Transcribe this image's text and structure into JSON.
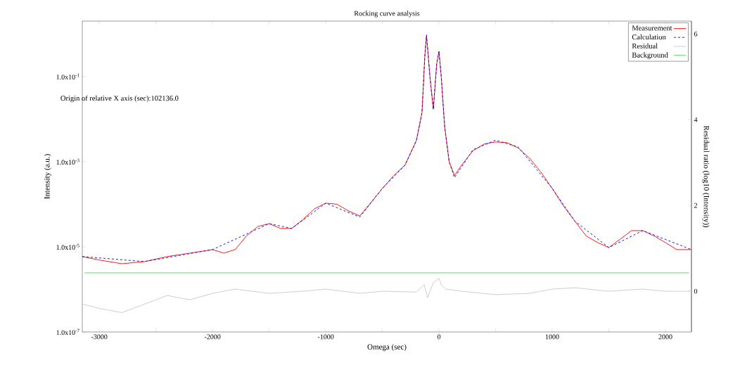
{
  "chart_data": {
    "type": "line",
    "title": "Rocking curve analysis",
    "xlabel": "Omega (sec)",
    "ylabel": "Intensity (a.u.)",
    "y2label": "Residual ratio (log10 (Intensity))",
    "annotations": [
      "Origin of relative X axis (sec):102136.0"
    ],
    "log": "y",
    "legend": "top right",
    "xlim": [
      -3150,
      2230
    ],
    "xticks": [
      -3000,
      {
        "value": -2500,
        "label": null
      },
      -2000,
      {
        "value": -1500,
        "label": null
      },
      -1000,
      {
        "value": -500,
        "label": null
      },
      0,
      {
        "value": 500,
        "label": null
      },
      1000,
      {
        "value": 1500,
        "label": null
      },
      2000
    ],
    "ylim": [
      1e-07,
      2
    ],
    "yticks": [
      {
        "value": 1e-07,
        "label": "1.0x10$^{-7}$"
      },
      {
        "value": 1e-05,
        "label": "1.0x10$^{-5}$"
      },
      {
        "value": 0.001,
        "label": "1.0x10$^{-3}$"
      },
      {
        "value": 0.1,
        "label": "1.0x10$^{-1}$"
      }
    ],
    "y2lim": [
      -0.95,
      6.3
    ],
    "y2ticks": [
      0,
      2,
      4,
      6
    ],
    "series": [
      {
        "name": "Measurement",
        "color": "#ff0000",
        "line_style": "solid",
        "x": [
          -3150,
          -3000,
          -2800,
          -2600,
          -2400,
          -2200,
          -2000,
          -1900,
          -1800,
          -1700,
          -1600,
          -1500,
          -1400,
          -1300,
          -1200,
          -1100,
          -1000,
          -900,
          -800,
          -700,
          -600,
          -500,
          -400,
          -300,
          -200,
          -150,
          -125,
          -110,
          -80,
          -50,
          -20,
          0,
          20,
          50,
          90,
          137,
          200,
          300,
          400,
          500,
          600,
          700,
          800,
          900,
          1000,
          1100,
          1200,
          1300,
          1400,
          1500,
          1600,
          1700,
          1800,
          1900,
          2000,
          2100,
          2230
        ],
        "values": [
          5.9e-06,
          4.9e-06,
          4e-06,
          4.5e-06,
          5.9e-06,
          7.1e-06,
          8.6e-06,
          7.1e-06,
          8.6e-06,
          1.8e-05,
          3e-05,
          3.5e-05,
          2.7e-05,
          2.7e-05,
          4.4e-05,
          7.8e-05,
          0.000106,
          0.0001,
          7e-05,
          5.3e-05,
          0.00011,
          0.000235,
          0.00047,
          0.00083,
          0.0031,
          0.014,
          0.3,
          0.94,
          0.1,
          0.017,
          0.2,
          0.39,
          0.1,
          0.0067,
          0.001,
          0.00047,
          0.00083,
          0.0018,
          0.0026,
          0.0029,
          0.0028,
          0.0021,
          0.0012,
          0.00057,
          0.000235,
          9.1e-05,
          4e-05,
          1.8e-05,
          1.26e-05,
          9.6e-06,
          1.5e-05,
          2.4e-05,
          2.4e-05,
          1.8e-05,
          1.26e-05,
          8.6e-06,
          8.6e-06
        ]
      },
      {
        "name": "Calculation",
        "color": "#0000ff",
        "line_style": "dashed",
        "x": [
          -3150,
          -2600,
          -2000,
          -1500,
          -1300,
          -1000,
          -700,
          -500,
          -300,
          -200,
          -150,
          -125,
          -110,
          -80,
          -50,
          -20,
          0,
          20,
          50,
          90,
          137,
          300,
          500,
          700,
          1000,
          1200,
          1500,
          1800,
          2230
        ],
        "values": [
          5.9e-06,
          4.5e-06,
          8.6e-06,
          3.5e-05,
          2.7e-05,
          0.000106,
          5e-05,
          0.000235,
          0.00083,
          0.0031,
          0.014,
          0.3,
          0.94,
          0.1,
          0.017,
          0.2,
          0.39,
          0.1,
          0.0067,
          0.001,
          0.00042,
          0.0019,
          0.0032,
          0.0022,
          0.000235,
          4e-05,
          9.6e-06,
          2.4e-05,
          8.6e-06
        ]
      },
      {
        "name": "Residual",
        "color": "#c8c8c8",
        "line_style": "solid",
        "axis": "y2",
        "x": [
          -3150,
          -3000,
          -2800,
          -2600,
          -2400,
          -2200,
          -2000,
          -1800,
          -1500,
          -1200,
          -1000,
          -700,
          -500,
          -200,
          -130,
          -100,
          -50,
          0,
          20,
          60,
          200,
          500,
          800,
          1000,
          1200,
          1500,
          1800,
          2000,
          2230
        ],
        "values": [
          -0.3,
          -0.4,
          -0.5,
          -0.3,
          -0.1,
          -0.2,
          -0.05,
          0.05,
          -0.05,
          0.0,
          0.05,
          -0.05,
          0.0,
          -0.02,
          0.15,
          -0.15,
          0.2,
          0.3,
          0.15,
          0.05,
          0.0,
          -0.08,
          -0.05,
          0.05,
          0.08,
          0.0,
          0.05,
          0.0,
          0.0
        ]
      },
      {
        "name": "Background",
        "color": "#33ee33",
        "line_style": "solid",
        "x": [
          -3130,
          2210
        ],
        "values": [
          2.45e-06,
          2.45e-06
        ]
      }
    ]
  }
}
